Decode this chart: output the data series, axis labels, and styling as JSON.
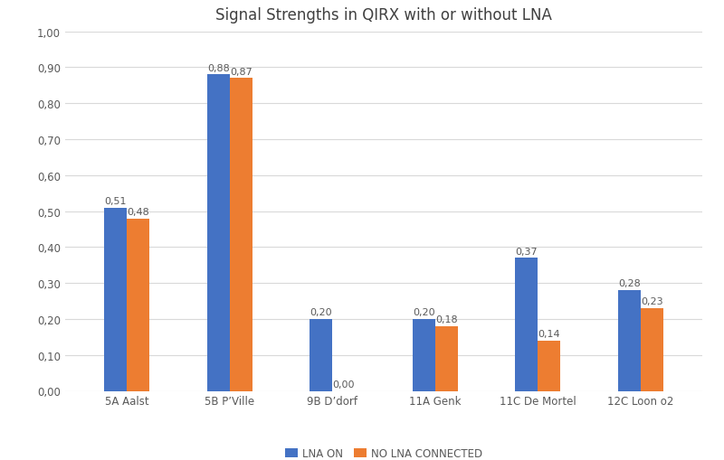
{
  "title": "Signal Strengths in QIRX with or without LNA",
  "categories": [
    "5A Aalst",
    "5B P’Ville",
    "9B D’dorf",
    "11A Genk",
    "11C De Mortel",
    "12C Loon o2"
  ],
  "lna_on": [
    0.51,
    0.88,
    0.2,
    0.2,
    0.37,
    0.28
  ],
  "no_lna": [
    0.48,
    0.87,
    0.0,
    0.18,
    0.14,
    0.23
  ],
  "lna_on_label": "LNA ON",
  "no_lna_label": "NO LNA CONNECTED",
  "lna_on_color": "#4472C4",
  "no_lna_color": "#ED7D31",
  "ylim": [
    0.0,
    1.0
  ],
  "yticks": [
    0.0,
    0.1,
    0.2,
    0.3,
    0.4,
    0.5,
    0.6,
    0.7,
    0.8,
    0.9,
    1.0
  ],
  "ytick_labels": [
    "0,00",
    "0,10",
    "0,20",
    "0,30",
    "0,40",
    "0,50",
    "0,60",
    "0,70",
    "0,80",
    "0,90",
    "1,00"
  ],
  "bar_width": 0.22,
  "background_color": "#ffffff",
  "grid_color": "#d9d9d9",
  "label_fontsize": 8,
  "title_fontsize": 12,
  "tick_fontsize": 8.5,
  "legend_fontsize": 8.5
}
